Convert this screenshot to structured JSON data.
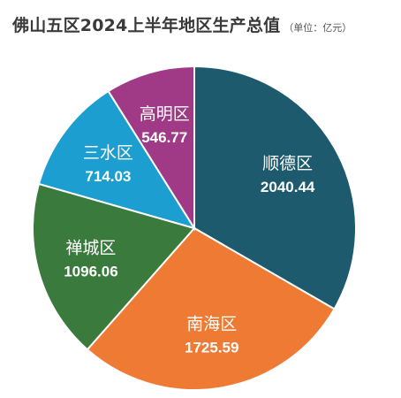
{
  "chart_data": {
    "type": "pie",
    "title": "佛山五区2024上半年地区生产总值",
    "unit_note": "（单位：亿元）",
    "slices": [
      {
        "label": "顺德区",
        "value": 2040.44,
        "value_text": "2040.44",
        "color": "#1e5a6e"
      },
      {
        "label": "南海区",
        "value": 1725.59,
        "value_text": "1725.59",
        "color": "#ef7a33"
      },
      {
        "label": "禅城区",
        "value": 1096.06,
        "value_text": "1096.06",
        "color": "#3a7a3c"
      },
      {
        "label": "三水区",
        "value": 714.03,
        "value_text": "714.03",
        "color": "#1c9fd0"
      },
      {
        "label": "高明区",
        "value": 546.77,
        "value_text": "546.77",
        "color": "#a03a86"
      }
    ],
    "start": "12 o'clock, clockwise",
    "legend": "none",
    "slice_borders": "#ffffff"
  }
}
